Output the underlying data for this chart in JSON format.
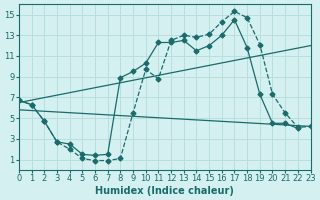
{
  "xlabel": "Humidex (Indice chaleur)",
  "background_color": "#d4f0f0",
  "grid_color": "#b8dede",
  "line_color": "#1a6b6b",
  "xlim": [
    0,
    23
  ],
  "ylim": [
    0,
    16
  ],
  "xticks": [
    0,
    1,
    2,
    3,
    4,
    5,
    6,
    7,
    8,
    9,
    10,
    11,
    12,
    13,
    14,
    15,
    16,
    17,
    18,
    19,
    20,
    21,
    22,
    23
  ],
  "yticks": [
    1,
    3,
    5,
    7,
    9,
    11,
    13,
    15
  ],
  "line1_x": [
    0,
    1,
    2,
    3,
    4,
    5,
    6,
    7,
    8,
    9,
    10,
    11,
    12,
    13,
    14,
    15,
    16,
    17,
    18,
    19,
    20,
    21,
    22,
    23
  ],
  "line1_y": [
    6.7,
    6.3,
    4.7,
    2.7,
    2.0,
    1.1,
    0.9,
    0.9,
    1.1,
    5.5,
    9.7,
    8.8,
    12.5,
    13.0,
    12.8,
    13.1,
    14.3,
    15.3,
    14.7,
    12.1,
    7.3,
    5.5,
    4.1,
    4.2
  ],
  "line2_x": [
    0,
    1,
    2,
    3,
    4,
    5,
    6,
    7,
    8,
    9,
    10,
    11,
    12,
    13,
    14,
    15,
    16,
    17,
    18,
    19,
    20,
    21,
    22
  ],
  "line2_y": [
    6.7,
    6.3,
    4.7,
    2.7,
    2.5,
    1.5,
    1.4,
    1.5,
    8.9,
    9.5,
    10.3,
    12.3,
    12.3,
    12.5,
    11.5,
    12.0,
    13.0,
    14.5,
    11.8,
    7.3,
    4.5,
    4.5,
    4.0
  ],
  "line3_x": [
    0,
    23
  ],
  "line3_y": [
    6.5,
    12.0
  ],
  "line4_x": [
    0,
    23
  ],
  "line4_y": [
    5.8,
    4.2
  ]
}
